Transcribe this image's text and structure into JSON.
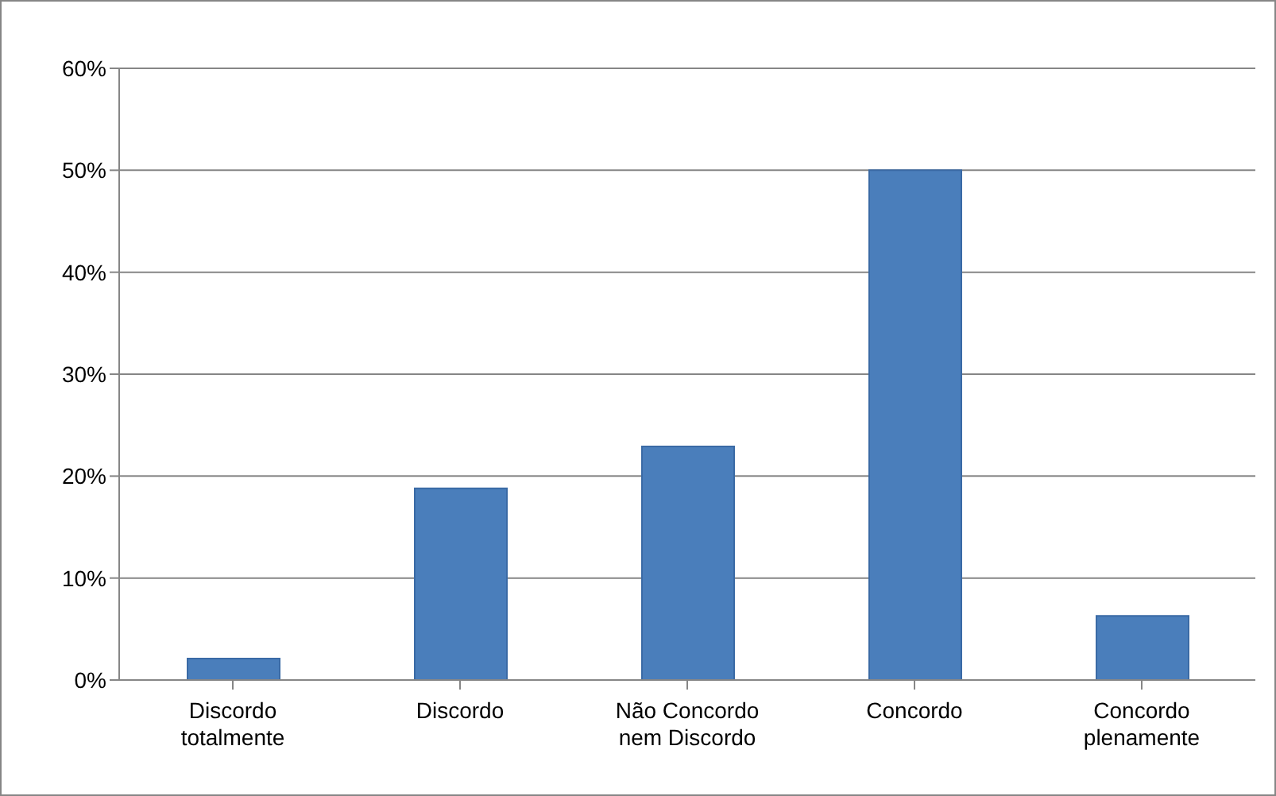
{
  "chart_data": {
    "type": "bar",
    "categories": [
      "Discordo totalmente",
      "Discordo",
      "Não Concordo nem Discordo",
      "Concordo",
      "Concordo plenamente"
    ],
    "values": [
      2.1,
      18.8,
      22.9,
      50,
      6.3
    ],
    "color": "#4a7ebb",
    "ylim": [
      0,
      60
    ],
    "yticks": [
      {
        "value": 0,
        "label": "0%"
      },
      {
        "value": 10,
        "label": "10%"
      },
      {
        "value": 20,
        "label": "20%"
      },
      {
        "value": 30,
        "label": "30%"
      },
      {
        "value": 40,
        "label": "40%"
      },
      {
        "value": 50,
        "label": "50%"
      },
      {
        "value": 60,
        "label": "60%"
      }
    ],
    "grid": "y"
  }
}
